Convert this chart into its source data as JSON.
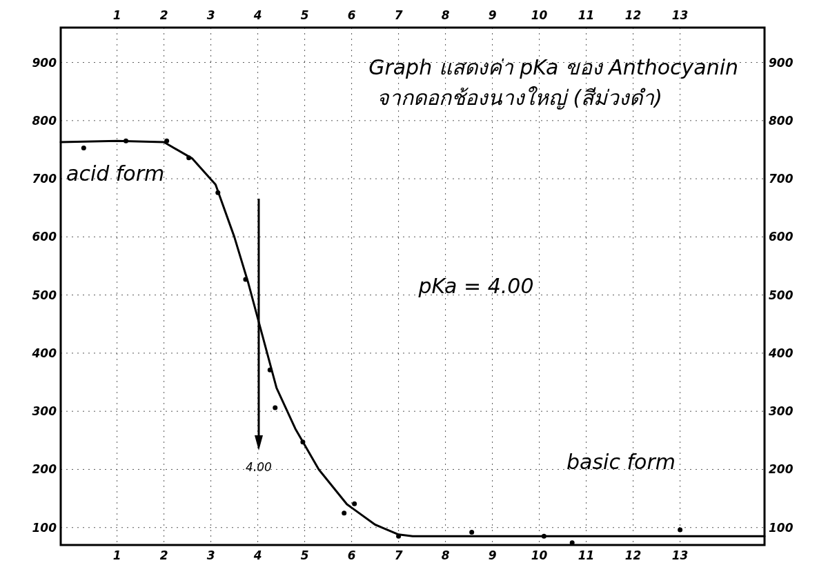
{
  "chart_data": {
    "type": "scatter",
    "title": "Graph แสดงค่า pKa ของ Anthocyanin",
    "subtitle": "จากดอกช้องนางใหญ่ (สีม่วงดำ)",
    "xlim": [
      -0.2,
      14.8
    ],
    "xticks": [
      1,
      2,
      3,
      4,
      5,
      6,
      7,
      8,
      9,
      10,
      11,
      12,
      13
    ],
    "x2lim": [
      -0.2,
      14.8
    ],
    "x2ticks": [
      1,
      2,
      3,
      4,
      5,
      6,
      7,
      8,
      9,
      10,
      11,
      12,
      13
    ],
    "ylim": [
      70,
      960
    ],
    "yticks": [
      100,
      200,
      300,
      400,
      500,
      600,
      700,
      800,
      900
    ],
    "y2lim": [
      70,
      960
    ],
    "y2ticks": [
      100,
      200,
      300,
      400,
      500,
      600,
      700,
      800,
      900
    ],
    "grid": true,
    "series": [
      {
        "color": "#000000",
        "marker": "circle",
        "x": [
          0.29,
          1.19,
          2.06,
          2.53,
          3.15,
          3.74,
          4.26,
          4.37,
          4.96,
          5.84,
          6.06,
          7.0,
          8.56,
          10.1,
          10.7,
          13.0
        ],
        "values": [
          753,
          765,
          765,
          736,
          676,
          527,
          371,
          306,
          247,
          125,
          141,
          85,
          92,
          85,
          74,
          96
        ]
      },
      {
        "type": "line",
        "color": "#000000",
        "marker": "none",
        "line_style": "solid",
        "x": [
          -0.2,
          1,
          2,
          2.6,
          3.1,
          3.5,
          3.8,
          4.1,
          4.4,
          4.8,
          5.3,
          5.9,
          6.5,
          7.0,
          7.3,
          14.8
        ],
        "values": [
          763,
          765,
          763,
          735,
          690,
          600,
          520,
          430,
          340,
          270,
          200,
          140,
          105,
          88,
          85,
          85
        ]
      }
    ],
    "annotations": [
      "acid form",
      "basic form",
      "pKa = 4.00",
      "4.00"
    ]
  }
}
